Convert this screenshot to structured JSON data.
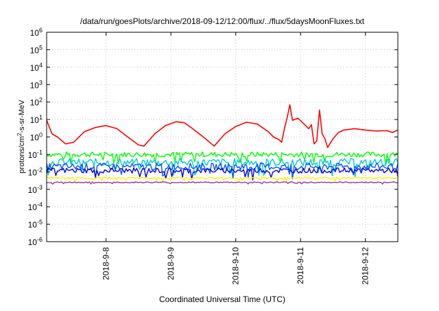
{
  "chart_data": {
    "type": "line",
    "title": "/data/run/goesPlots/archive/2018-09-12/12:00/flux/../flux/5daysMoonFluxes.txt",
    "xlabel": "Coordinated Universal Time (UTC)",
    "ylabel": {
      "base": "protons/cm",
      "sup": "2",
      "rest": "-s-sr-MeV"
    },
    "x_ticks": [
      "2018-9-8",
      "2018-9-9",
      "2018-9-10",
      "2018-9-11",
      "2018-9-12"
    ],
    "xlim": [
      "2018-09-07 02:00",
      "2018-09-12 12:00"
    ],
    "y_scale": "log",
    "ylim": [
      1e-06,
      1000000.0
    ],
    "y_ticks": [
      {
        "base": "10",
        "exp": "6"
      },
      {
        "base": "10",
        "exp": "5"
      },
      {
        "base": "10",
        "exp": "4"
      },
      {
        "base": "10",
        "exp": "3"
      },
      {
        "base": "10",
        "exp": "2"
      },
      {
        "base": "10",
        "exp": "1"
      },
      {
        "base": "10",
        "exp": "0"
      },
      {
        "base": "10",
        "exp": "-1"
      },
      {
        "base": "10",
        "exp": "-2"
      },
      {
        "base": "10",
        "exp": "-3"
      },
      {
        "base": "10",
        "exp": "-4"
      },
      {
        "base": "10",
        "exp": "-5"
      },
      {
        "base": "10",
        "exp": "-6"
      }
    ],
    "grid": true,
    "series": [
      {
        "color": "#ff0000",
        "x": [
          "2018-09-07 02:00",
          "2018-09-07 04:00",
          "2018-09-07 06:00",
          "2018-09-07 09:00",
          "2018-09-07 12:00",
          "2018-09-07 16:00",
          "2018-09-07 20:00",
          "2018-09-08 00:00",
          "2018-09-08 04:00",
          "2018-09-08 08:00",
          "2018-09-08 12:00",
          "2018-09-08 14:00",
          "2018-09-08 18:00",
          "2018-09-08 22:00",
          "2018-09-09 02:00",
          "2018-09-09 05:00",
          "2018-09-09 08:00",
          "2018-09-09 12:00",
          "2018-09-09 16:00",
          "2018-09-09 20:00",
          "2018-09-10 00:00",
          "2018-09-10 04:00",
          "2018-09-10 08:00",
          "2018-09-10 12:00",
          "2018-09-10 14:00",
          "2018-09-10 16:00",
          "2018-09-10 17:00",
          "2018-09-10 18:00",
          "2018-09-10 19:00",
          "2018-09-10 20:00",
          "2018-09-10 21:00",
          "2018-09-10 23:00",
          "2018-09-11 01:00",
          "2018-09-11 03:00",
          "2018-09-11 04:00",
          "2018-09-11 05:00",
          "2018-09-11 06:00",
          "2018-09-11 07:00",
          "2018-09-11 08:00",
          "2018-09-11 09:00",
          "2018-09-11 10:00",
          "2018-09-11 12:00",
          "2018-09-11 14:00",
          "2018-09-11 16:00",
          "2018-09-11 20:00",
          "2018-09-12 00:00",
          "2018-09-12 04:00",
          "2018-09-12 08:00",
          "2018-09-12 10:00",
          "2018-09-12 12:00"
        ],
        "y": [
          9,
          1.5,
          1.0,
          0.4,
          0.5,
          2.0,
          3.5,
          4.5,
          3.0,
          1.0,
          0.35,
          0.3,
          1.5,
          4.5,
          7.5,
          6.5,
          3.0,
          1.0,
          0.3,
          1.5,
          4.0,
          7.0,
          5.5,
          2.0,
          1.0,
          0.7,
          0.5,
          3.0,
          12,
          70,
          9,
          12,
          6,
          3,
          5,
          0.4,
          0.6,
          35,
          1.5,
          0.8,
          0.25,
          0.8,
          1.8,
          2.5,
          3.0,
          2.5,
          2.2,
          2.3,
          1.8,
          2.5
        ]
      },
      {
        "color": "#00ff00",
        "mean": 0.1,
        "spread": 0.3
      },
      {
        "color": "#00cccc",
        "mean": 0.035,
        "spread": 0.45
      },
      {
        "color": "#0055ff",
        "mean": 0.02,
        "spread": 0.4
      },
      {
        "color": "#0000dd",
        "mean": 0.012,
        "spread": 0.3
      },
      {
        "color": "#ffee00",
        "mean": 0.0045,
        "spread": 0.1
      },
      {
        "color": "#993399",
        "mean": 0.0025,
        "spread": 0.06
      }
    ]
  }
}
